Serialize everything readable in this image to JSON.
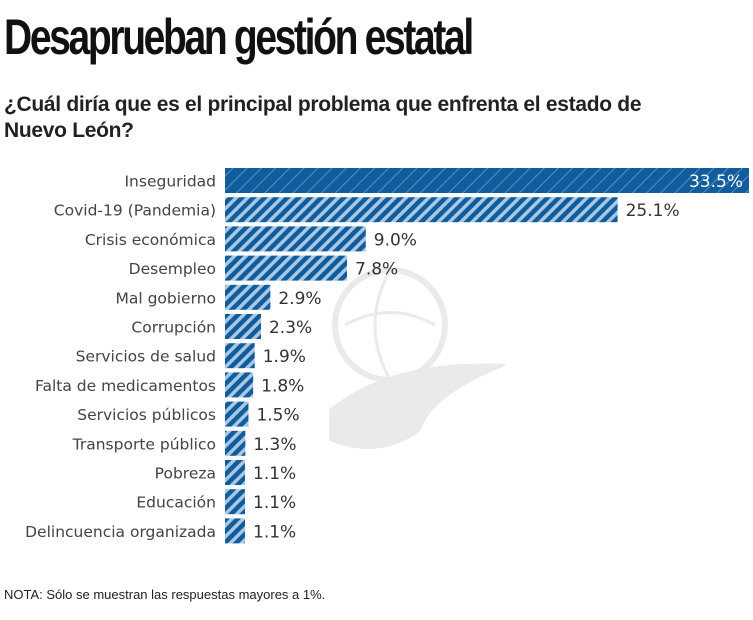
{
  "header": {
    "title": "Desaprueban gestión estatal",
    "subtitle": "¿Cuál diría que es el principal problema que enfrenta el estado de Nuevo León?"
  },
  "footer": {
    "note": "NOTA: Sólo se muestran las respuestas mayores a 1%."
  },
  "colors": {
    "bar": "#0f5d9c",
    "hatch": "#a9c6e3",
    "highlight": "#0f5d9c"
  },
  "watermark": "eagle-globe-logo",
  "chart_data": {
    "type": "bar",
    "orientation": "horizontal",
    "title": "¿Cuál diría que es el principal problema que enfrenta el estado de Nuevo León?",
    "xlabel": "",
    "ylabel": "",
    "unit": "%",
    "xlim": [
      0,
      33.5
    ],
    "grid": false,
    "categories": [
      "Inseguridad",
      "Covid-19 (Pandemia)",
      "Crisis económica",
      "Desempleo",
      "Mal gobierno",
      "Corrupción",
      "Servicios de salud",
      "Falta de medicamentos",
      "Servicios públicos",
      "Transporte público",
      "Pobreza",
      "Educación",
      "Delincuencia organizada"
    ],
    "values": [
      33.5,
      25.1,
      9.0,
      7.8,
      2.9,
      2.3,
      1.9,
      1.8,
      1.5,
      1.3,
      1.1,
      1.1,
      1.1
    ],
    "value_labels": [
      "33.5%",
      "25.1%",
      "9.0%",
      "7.8%",
      "2.9%",
      "2.3%",
      "1.9%",
      "1.8%",
      "1.5%",
      "1.3%",
      "1.1%",
      "1.1%",
      "1.1%"
    ],
    "highlighted_category": "Inseguridad"
  }
}
